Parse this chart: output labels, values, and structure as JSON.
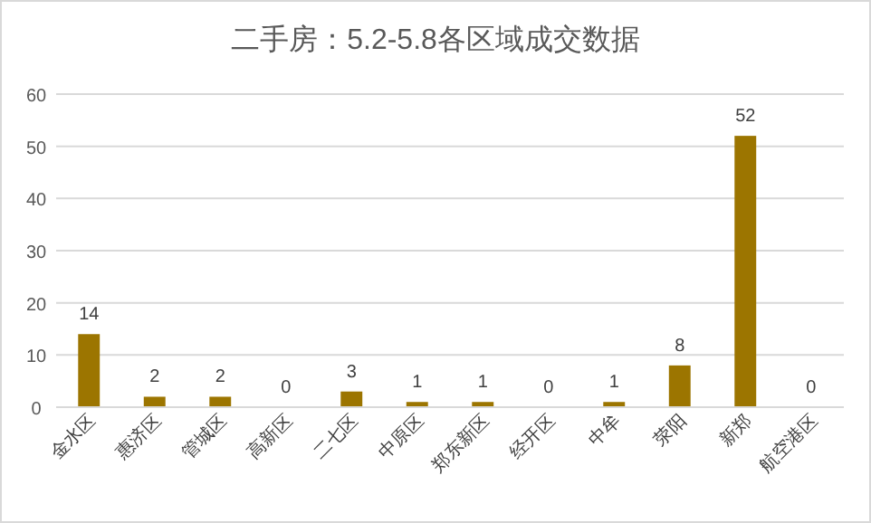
{
  "chart_data": {
    "type": "bar",
    "title": "二手房：5.2-5.8各区域成交数据",
    "categories": [
      "金水区",
      "惠济区",
      "管城区",
      "高新区",
      "二七区",
      "中原区",
      "郑东新区",
      "经开区",
      "中牟",
      "荥阳",
      "新郑",
      "航空港区"
    ],
    "values": [
      14,
      2,
      2,
      0,
      3,
      1,
      1,
      0,
      1,
      8,
      52,
      0
    ],
    "color": "#9c7500",
    "ylim": [
      0,
      60
    ],
    "yticks": [
      0,
      10,
      20,
      30,
      40,
      50,
      60
    ],
    "grid": "y",
    "data_labels": true
  }
}
